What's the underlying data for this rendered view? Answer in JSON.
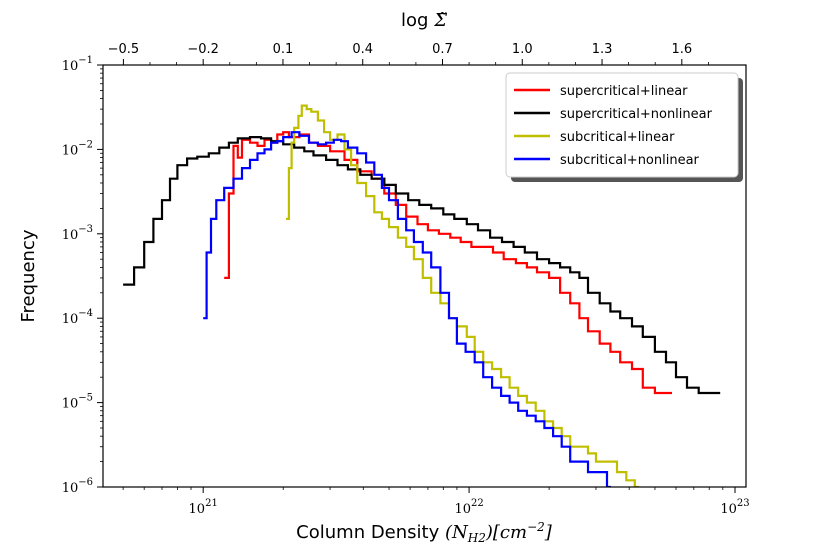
{
  "chart_data": {
    "type": "line",
    "title": "",
    "xlabel": "Column Density (N_H2)[cm^-2]",
    "xlabel_parts": {
      "prefix": "Column Density ",
      "math": "(N",
      "sub": "H2",
      "mid": ")[cm",
      "sup": "−2",
      "suffix": "]"
    },
    "ylabel": "Frequency",
    "x_scale": "log",
    "y_scale": "log",
    "xlim": [
      4.2e+20,
      1.1e+23
    ],
    "ylim": [
      1e-06,
      0.1
    ],
    "x_ticks": [
      {
        "value": 1e+21,
        "base": "10",
        "exp": "21"
      },
      {
        "value": 1e+22,
        "base": "10",
        "exp": "22"
      },
      {
        "value": 1e+23,
        "base": "10",
        "exp": "23"
      }
    ],
    "y_ticks": [
      {
        "value": 1e-06,
        "base": "10",
        "exp": "−6"
      },
      {
        "value": 1e-05,
        "base": "10",
        "exp": "−5"
      },
      {
        "value": 0.0001,
        "base": "10",
        "exp": "−4"
      },
      {
        "value": 0.001,
        "base": "10",
        "exp": "−3"
      },
      {
        "value": 0.01,
        "base": "10",
        "exp": "−2"
      },
      {
        "value": 0.1,
        "base": "10",
        "exp": "−1"
      }
    ],
    "top_axis": {
      "label": "log Σ̃",
      "label_prefix": "log",
      "label_symbol": "Σ̃",
      "ticks": [
        "−0.5",
        "−0.2",
        "0.1",
        "0.4",
        "0.7",
        "1.0",
        "1.3",
        "1.6"
      ],
      "tick_values": [
        -0.5,
        -0.2,
        0.1,
        0.4,
        0.7,
        1.0,
        1.3,
        1.6
      ],
      "log_n_at_zero": 21.2
    },
    "legend_position": "upper right",
    "series": [
      {
        "name": "supercritical+linear",
        "color": "#ff0000",
        "points": [
          [
            1.2e+21,
            0.0003
          ],
          [
            1.25e+21,
            0.003
          ],
          [
            1.3e+21,
            0.011
          ],
          [
            1.35e+21,
            0.008
          ],
          [
            1.4e+21,
            0.013
          ],
          [
            1.5e+21,
            0.012
          ],
          [
            1.6e+21,
            0.011
          ],
          [
            1.7e+21,
            0.013
          ],
          [
            1.8e+21,
            0.012
          ],
          [
            1.9e+21,
            0.015
          ],
          [
            2e+21,
            0.016
          ],
          [
            2.1e+21,
            0.014
          ],
          [
            2.3e+21,
            0.015
          ],
          [
            2.5e+21,
            0.012
          ],
          [
            2.7e+21,
            0.011
          ],
          [
            3e+21,
            0.0095
          ],
          [
            3.4e+21,
            0.0075
          ],
          [
            3.8e+21,
            0.0055
          ],
          [
            4.3e+21,
            0.0045
          ],
          [
            4.8e+21,
            0.003
          ],
          [
            5.3e+21,
            0.0022
          ],
          [
            5.8e+21,
            0.0016
          ],
          [
            6.4e+21,
            0.0013
          ],
          [
            7e+21,
            0.0011
          ],
          [
            7.7e+21,
            0.001
          ],
          [
            8.5e+21,
            0.0009
          ],
          [
            9.3e+21,
            0.0008
          ],
          [
            1.02e+22,
            0.0007
          ],
          [
            1.12e+22,
            0.0007
          ],
          [
            1.23e+22,
            0.0006
          ],
          [
            1.35e+22,
            0.0005
          ],
          [
            1.5e+22,
            0.00045
          ],
          [
            1.65e+22,
            0.0004
          ],
          [
            1.8e+22,
            0.00035
          ],
          [
            2e+22,
            0.0003
          ],
          [
            2.2e+22,
            0.0002
          ],
          [
            2.4e+22,
            0.00015
          ],
          [
            2.6e+22,
            0.0001
          ],
          [
            2.8e+22,
            7e-05
          ],
          [
            3.1e+22,
            5e-05
          ],
          [
            3.4e+22,
            4e-05
          ],
          [
            3.7e+22,
            3e-05
          ],
          [
            4.1e+22,
            2.5e-05
          ],
          [
            4.5e+22,
            1.5e-05
          ],
          [
            5e+22,
            1.3e-05
          ],
          [
            5.6e+22,
            1.3e-05
          ]
        ]
      },
      {
        "name": "supercritical+nonlinear",
        "color": "#000000",
        "points": [
          [
            5e+20,
            0.00025
          ],
          [
            5.5e+20,
            0.0004
          ],
          [
            6e+20,
            0.0008
          ],
          [
            6.5e+20,
            0.0015
          ],
          [
            7e+20,
            0.0025
          ],
          [
            7.5e+20,
            0.0045
          ],
          [
            8e+20,
            0.0065
          ],
          [
            8.7e+20,
            0.0078
          ],
          [
            9.5e+20,
            0.0082
          ],
          [
            1.05e+21,
            0.009
          ],
          [
            1.15e+21,
            0.0105
          ],
          [
            1.25e+21,
            0.012
          ],
          [
            1.35e+21,
            0.0135
          ],
          [
            1.5e+21,
            0.014
          ],
          [
            1.65e+21,
            0.0135
          ],
          [
            1.8e+21,
            0.0125
          ],
          [
            2e+21,
            0.0115
          ],
          [
            2.2e+21,
            0.0105
          ],
          [
            2.4e+21,
            0.0095
          ],
          [
            2.6e+21,
            0.0085
          ],
          [
            2.9e+21,
            0.0075
          ],
          [
            3.2e+21,
            0.0065
          ],
          [
            3.5e+21,
            0.0058
          ],
          [
            3.9e+21,
            0.005
          ],
          [
            4.3e+21,
            0.0045
          ],
          [
            4.8e+21,
            0.0038
          ],
          [
            5.3e+21,
            0.003
          ],
          [
            5.9e+21,
            0.0025
          ],
          [
            6.5e+21,
            0.0022
          ],
          [
            7.2e+21,
            0.002
          ],
          [
            8e+21,
            0.0017
          ],
          [
            8.8e+21,
            0.0015
          ],
          [
            9.8e+21,
            0.0013
          ],
          [
            1.08e+22,
            0.0011
          ],
          [
            1.2e+22,
            0.0009
          ],
          [
            1.33e+22,
            0.0008
          ],
          [
            1.47e+22,
            0.0007
          ],
          [
            1.62e+22,
            0.0006
          ],
          [
            1.8e+22,
            0.0005
          ],
          [
            2e+22,
            0.00045
          ],
          [
            2.2e+22,
            0.0004
          ],
          [
            2.4e+22,
            0.00035
          ],
          [
            2.6e+22,
            0.0003
          ],
          [
            2.8e+22,
            0.0002
          ],
          [
            3.1e+22,
            0.00015
          ],
          [
            3.4e+22,
            0.00012
          ],
          [
            3.7e+22,
            0.0001
          ],
          [
            4.1e+22,
            8e-05
          ],
          [
            4.5e+22,
            6e-05
          ],
          [
            5e+22,
            4e-05
          ],
          [
            5.5e+22,
            3e-05
          ],
          [
            6e+22,
            2e-05
          ],
          [
            6.6e+22,
            1.5e-05
          ],
          [
            7.3e+22,
            1.3e-05
          ],
          [
            8e+22,
            1.3e-05
          ],
          [
            8.5e+22,
            1.3e-05
          ]
        ]
      },
      {
        "name": "subcritical+linear",
        "color": "#bfbf00",
        "points": [
          [
            2.05e+21,
            0.0015
          ],
          [
            2.1e+21,
            0.006
          ],
          [
            2.15e+21,
            0.012
          ],
          [
            2.2e+21,
            0.018
          ],
          [
            2.28e+21,
            0.025
          ],
          [
            2.35e+21,
            0.033
          ],
          [
            2.45e+21,
            0.03
          ],
          [
            2.55e+21,
            0.028
          ],
          [
            2.7e+21,
            0.022
          ],
          [
            2.85e+21,
            0.016
          ],
          [
            3e+21,
            0.013
          ],
          [
            3.2e+21,
            0.015
          ],
          [
            3.4e+21,
            0.01
          ],
          [
            3.6e+21,
            0.0065
          ],
          [
            3.8e+21,
            0.004
          ],
          [
            4.1e+21,
            0.0028
          ],
          [
            4.4e+21,
            0.0018
          ],
          [
            4.7e+21,
            0.0015
          ],
          [
            5e+21,
            0.0012
          ],
          [
            5.4e+21,
            0.0009
          ],
          [
            5.8e+21,
            0.0007
          ],
          [
            6.2e+21,
            0.0005
          ],
          [
            6.7e+21,
            0.0003
          ],
          [
            7.2e+21,
            0.0002
          ],
          [
            7.8e+21,
            0.00015
          ],
          [
            8.4e+21,
            0.0001
          ],
          [
            9e+21,
            8e-05
          ],
          [
            9.8e+21,
            6e-05
          ],
          [
            1.05e+22,
            4e-05
          ],
          [
            1.13e+22,
            3e-05
          ],
          [
            1.22e+22,
            2.5e-05
          ],
          [
            1.32e+22,
            2e-05
          ],
          [
            1.42e+22,
            1.5e-05
          ],
          [
            1.53e+22,
            1.2e-05
          ],
          [
            1.65e+22,
            1e-05
          ],
          [
            1.78e+22,
            8e-06
          ],
          [
            1.92e+22,
            6e-06
          ],
          [
            2.07e+22,
            5e-06
          ],
          [
            2.23e+22,
            4e-06
          ],
          [
            2.4e+22,
            3e-06
          ],
          [
            2.6e+22,
            3e-06
          ],
          [
            2.8e+22,
            2.5e-06
          ],
          [
            3e+22,
            2e-06
          ],
          [
            3.3e+22,
            2e-06
          ],
          [
            3.6e+22,
            1.5e-06
          ],
          [
            3.9e+22,
            1.2e-06
          ],
          [
            4.2e+22,
            1e-06
          ]
        ]
      },
      {
        "name": "subcritical+nonlinear",
        "color": "#0000ff",
        "points": [
          [
            1e+21,
            0.0001
          ],
          [
            1.03e+21,
            0.0006
          ],
          [
            1.07e+21,
            0.0015
          ],
          [
            1.12e+21,
            0.0025
          ],
          [
            1.2e+21,
            0.0035
          ],
          [
            1.3e+21,
            0.0045
          ],
          [
            1.4e+21,
            0.006
          ],
          [
            1.5e+21,
            0.0075
          ],
          [
            1.6e+21,
            0.009
          ],
          [
            1.7e+21,
            0.01
          ],
          [
            1.8e+21,
            0.012
          ],
          [
            1.9e+21,
            0.0125
          ],
          [
            2e+21,
            0.014
          ],
          [
            2.15e+21,
            0.016
          ],
          [
            2.3e+21,
            0.0145
          ],
          [
            2.5e+21,
            0.012
          ],
          [
            2.7e+21,
            0.0115
          ],
          [
            2.9e+21,
            0.012
          ],
          [
            3.1e+21,
            0.013
          ],
          [
            3.3e+21,
            0.0125
          ],
          [
            3.5e+21,
            0.0105
          ],
          [
            3.8e+21,
            0.009
          ],
          [
            4.1e+21,
            0.007
          ],
          [
            4.4e+21,
            0.005
          ],
          [
            4.7e+21,
            0.0035
          ],
          [
            5e+21,
            0.0025
          ],
          [
            5.4e+21,
            0.0015
          ],
          [
            5.8e+21,
            0.0011
          ],
          [
            6.2e+21,
            0.0008
          ],
          [
            6.7e+21,
            0.0006
          ],
          [
            7.2e+21,
            0.0004
          ],
          [
            7.8e+21,
            0.0002
          ],
          [
            8.4e+21,
            0.0001
          ],
          [
            9e+21,
            5e-05
          ],
          [
            9.7e+21,
            4e-05
          ],
          [
            1.05e+22,
            3e-05
          ],
          [
            1.13e+22,
            2e-05
          ],
          [
            1.22e+22,
            1.5e-05
          ],
          [
            1.32e+22,
            1.2e-05
          ],
          [
            1.42e+22,
            1e-05
          ],
          [
            1.53e+22,
            8e-06
          ],
          [
            1.65e+22,
            7e-06
          ],
          [
            1.78e+22,
            6e-06
          ],
          [
            1.92e+22,
            5e-06
          ],
          [
            2.07e+22,
            4e-06
          ],
          [
            2.23e+22,
            3e-06
          ],
          [
            2.4e+22,
            2e-06
          ],
          [
            2.6e+22,
            2e-06
          ],
          [
            2.8e+22,
            1.5e-06
          ],
          [
            3e+22,
            1.5e-06
          ],
          [
            3.3e+22,
            1e-06
          ]
        ]
      }
    ]
  }
}
